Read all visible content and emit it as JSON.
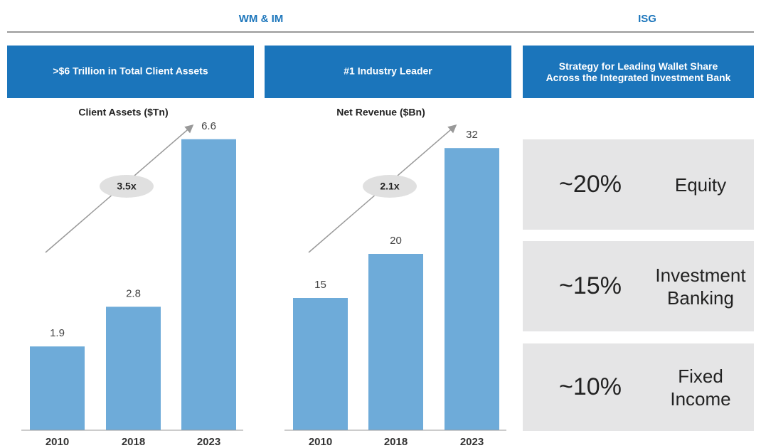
{
  "header": {
    "left": "WM & IM",
    "right": "ISG"
  },
  "chart_data": [
    {
      "type": "bar",
      "heading": ">$6 Trillion in Total Client Assets",
      "title": "Client Assets ($Tn)",
      "categories": [
        "2010",
        "2018",
        "2023"
      ],
      "values": [
        1.9,
        2.8,
        6.6
      ],
      "color": "#6eabd9",
      "ylim": [
        0,
        7
      ],
      "annotation": "3.5x"
    },
    {
      "type": "bar",
      "heading": "#1 Industry Leader",
      "title": "Net Revenue ($Bn)",
      "categories": [
        "2010",
        "2018",
        "2023"
      ],
      "values": [
        15,
        20,
        32
      ],
      "color": "#6eabd9",
      "ylim": [
        0,
        35
      ],
      "annotation": "2.1x"
    }
  ],
  "isg": {
    "heading": [
      "Strategy for Leading Wallet Share",
      "Across the Integrated Investment Bank"
    ],
    "items": [
      {
        "share": "~20%",
        "label": "Equity"
      },
      {
        "share": "~15%",
        "label": "Investment Banking"
      },
      {
        "share": "~10%",
        "label": "Fixed Income"
      }
    ]
  }
}
